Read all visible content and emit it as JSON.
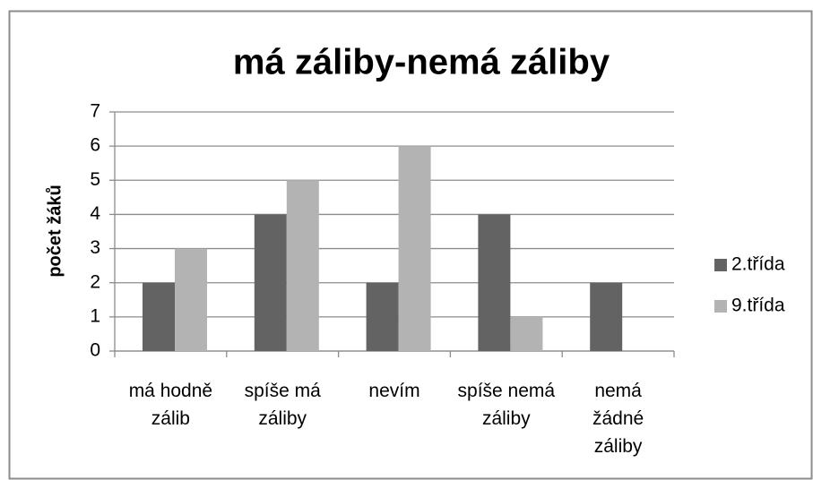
{
  "chart_data": {
    "type": "bar",
    "title": "má záliby-nemá záliby",
    "y_label": "počet žáků",
    "categories": [
      [
        "má hodně",
        "zálib"
      ],
      [
        "spíše má",
        "záliby"
      ],
      [
        "nevím"
      ],
      [
        "spíše nemá",
        "záliby"
      ],
      [
        "nemá",
        "žádné",
        "záliby"
      ]
    ],
    "series": [
      {
        "name": "2.třída",
        "color": "#636363",
        "values": [
          2,
          4,
          2,
          4,
          2
        ]
      },
      {
        "name": "9.třída",
        "color": "#b3b3b3",
        "values": [
          3,
          5,
          6,
          1,
          0
        ]
      }
    ],
    "ylim": [
      0,
      7
    ],
    "yticks": [
      0,
      1,
      2,
      3,
      4,
      5,
      6,
      7
    ],
    "grid": true,
    "legend": "right"
  }
}
